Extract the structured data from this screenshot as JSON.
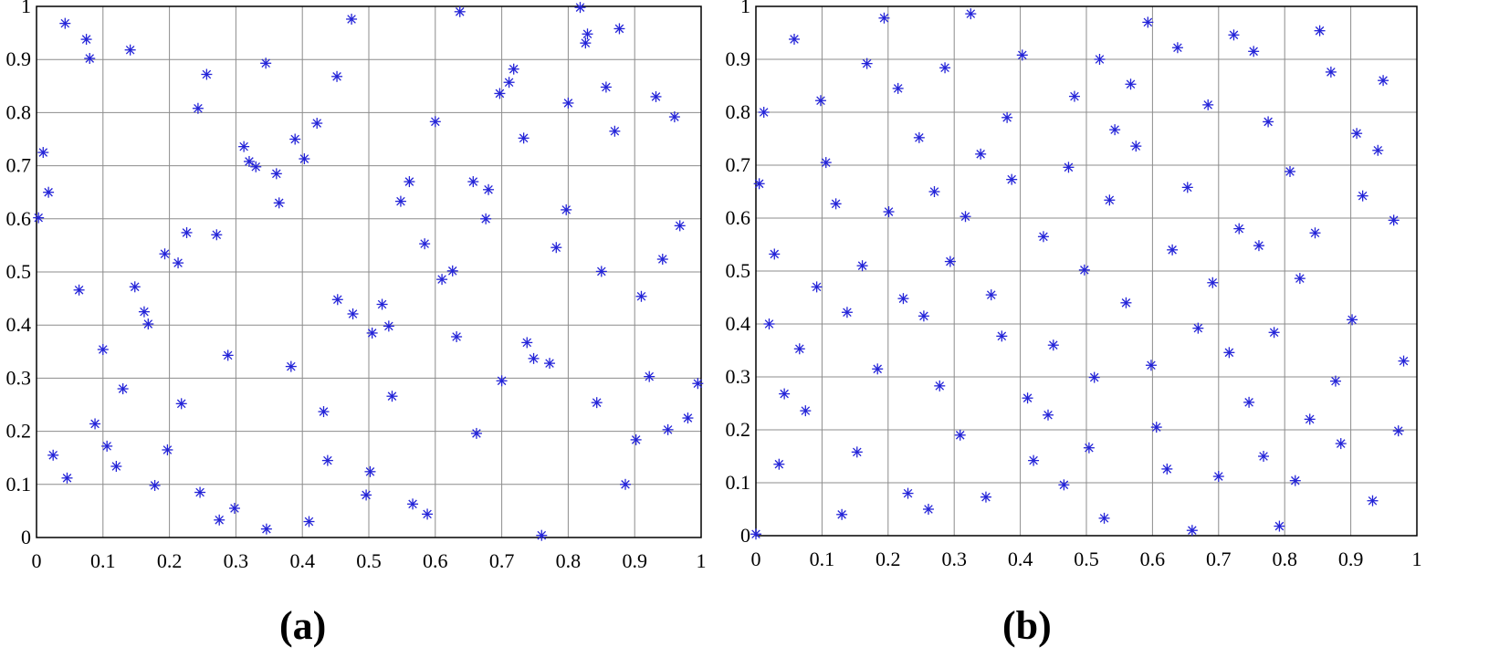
{
  "figure": {
    "panel_labels": [
      "(a)",
      "(b)"
    ]
  },
  "chart_data": [
    {
      "type": "scatter",
      "panel": "(a)",
      "title": "",
      "xlabel": "",
      "ylabel": "",
      "xlim": [
        0,
        1
      ],
      "ylim": [
        0,
        1
      ],
      "xticks": [
        "0",
        "0.1",
        "0.2",
        "0.3",
        "0.4",
        "0.5",
        "0.6",
        "0.7",
        "0.8",
        "0.9",
        "1"
      ],
      "yticks": [
        "0",
        "0.1",
        "0.2",
        "0.3",
        "0.4",
        "0.5",
        "0.6",
        "0.7",
        "0.8",
        "0.9",
        "1"
      ],
      "grid": true,
      "marker": "asterisk",
      "color": "#2424d8",
      "points": [
        [
          0.003,
          0.602
        ],
        [
          0.01,
          0.725
        ],
        [
          0.018,
          0.65
        ],
        [
          0.043,
          0.968
        ],
        [
          0.025,
          0.155
        ],
        [
          0.046,
          0.112
        ],
        [
          0.064,
          0.466
        ],
        [
          0.075,
          0.938
        ],
        [
          0.08,
          0.902
        ],
        [
          0.088,
          0.214
        ],
        [
          0.1,
          0.354
        ],
        [
          0.106,
          0.172
        ],
        [
          0.12,
          0.134
        ],
        [
          0.13,
          0.28
        ],
        [
          0.141,
          0.918
        ],
        [
          0.148,
          0.472
        ],
        [
          0.162,
          0.425
        ],
        [
          0.168,
          0.402
        ],
        [
          0.178,
          0.098
        ],
        [
          0.193,
          0.534
        ],
        [
          0.197,
          0.165
        ],
        [
          0.213,
          0.517
        ],
        [
          0.218,
          0.252
        ],
        [
          0.226,
          0.574
        ],
        [
          0.243,
          0.808
        ],
        [
          0.246,
          0.085
        ],
        [
          0.256,
          0.872
        ],
        [
          0.271,
          0.57
        ],
        [
          0.275,
          0.033
        ],
        [
          0.288,
          0.343
        ],
        [
          0.298,
          0.055
        ],
        [
          0.312,
          0.736
        ],
        [
          0.32,
          0.708
        ],
        [
          0.33,
          0.698
        ],
        [
          0.345,
          0.893
        ],
        [
          0.346,
          0.016
        ],
        [
          0.361,
          0.685
        ],
        [
          0.365,
          0.63
        ],
        [
          0.383,
          0.322
        ],
        [
          0.389,
          0.75
        ],
        [
          0.403,
          0.713
        ],
        [
          0.41,
          0.03
        ],
        [
          0.422,
          0.78
        ],
        [
          0.432,
          0.237
        ],
        [
          0.438,
          0.145
        ],
        [
          0.452,
          0.868
        ],
        [
          0.453,
          0.448
        ],
        [
          0.474,
          0.976
        ],
        [
          0.476,
          0.421
        ],
        [
          0.496,
          0.08
        ],
        [
          0.502,
          0.124
        ],
        [
          0.505,
          0.385
        ],
        [
          0.52,
          0.439
        ],
        [
          0.53,
          0.398
        ],
        [
          0.535,
          0.266
        ],
        [
          0.548,
          0.633
        ],
        [
          0.561,
          0.67
        ],
        [
          0.566,
          0.063
        ],
        [
          0.584,
          0.553
        ],
        [
          0.588,
          0.044
        ],
        [
          0.6,
          0.783
        ],
        [
          0.61,
          0.486
        ],
        [
          0.626,
          0.502
        ],
        [
          0.632,
          0.378
        ],
        [
          0.637,
          0.99
        ],
        [
          0.657,
          0.67
        ],
        [
          0.662,
          0.196
        ],
        [
          0.676,
          0.6
        ],
        [
          0.68,
          0.655
        ],
        [
          0.697,
          0.836
        ],
        [
          0.7,
          0.295
        ],
        [
          0.711,
          0.857
        ],
        [
          0.718,
          0.882
        ],
        [
          0.733,
          0.752
        ],
        [
          0.738,
          0.367
        ],
        [
          0.748,
          0.337
        ],
        [
          0.76,
          0.004
        ],
        [
          0.772,
          0.328
        ],
        [
          0.782,
          0.546
        ],
        [
          0.797,
          0.617
        ],
        [
          0.8,
          0.818
        ],
        [
          0.818,
          0.998
        ],
        [
          0.826,
          0.931
        ],
        [
          0.829,
          0.948
        ],
        [
          0.843,
          0.254
        ],
        [
          0.85,
          0.501
        ],
        [
          0.857,
          0.848
        ],
        [
          0.87,
          0.765
        ],
        [
          0.877,
          0.958
        ],
        [
          0.886,
          0.1
        ],
        [
          0.902,
          0.184
        ],
        [
          0.91,
          0.454
        ],
        [
          0.922,
          0.303
        ],
        [
          0.932,
          0.83
        ],
        [
          0.942,
          0.524
        ],
        [
          0.95,
          0.203
        ],
        [
          0.96,
          0.792
        ],
        [
          0.968,
          0.587
        ],
        [
          0.98,
          0.225
        ],
        [
          0.995,
          0.29
        ]
      ]
    },
    {
      "type": "scatter",
      "panel": "(b)",
      "title": "",
      "xlabel": "",
      "ylabel": "",
      "xlim": [
        0,
        1
      ],
      "ylim": [
        0,
        1
      ],
      "xticks": [
        "0",
        "0.1",
        "0.2",
        "0.3",
        "0.4",
        "0.5",
        "0.6",
        "0.7",
        "0.8",
        "0.9",
        "1"
      ],
      "yticks": [
        "0",
        "0.1",
        "0.2",
        "0.3",
        "0.4",
        "0.5",
        "0.6",
        "0.7",
        "0.8",
        "0.9",
        "1"
      ],
      "grid": true,
      "marker": "asterisk",
      "color": "#2424d8",
      "points": [
        [
          0.0,
          0.003
        ],
        [
          0.005,
          0.665
        ],
        [
          0.012,
          0.8
        ],
        [
          0.02,
          0.4
        ],
        [
          0.028,
          0.532
        ],
        [
          0.035,
          0.135
        ],
        [
          0.043,
          0.268
        ],
        [
          0.058,
          0.938
        ],
        [
          0.066,
          0.353
        ],
        [
          0.075,
          0.236
        ],
        [
          0.092,
          0.47
        ],
        [
          0.098,
          0.822
        ],
        [
          0.106,
          0.705
        ],
        [
          0.121,
          0.627
        ],
        [
          0.13,
          0.04
        ],
        [
          0.138,
          0.422
        ],
        [
          0.153,
          0.158
        ],
        [
          0.161,
          0.51
        ],
        [
          0.168,
          0.892
        ],
        [
          0.184,
          0.315
        ],
        [
          0.194,
          0.978
        ],
        [
          0.201,
          0.612
        ],
        [
          0.215,
          0.845
        ],
        [
          0.223,
          0.448
        ],
        [
          0.23,
          0.08
        ],
        [
          0.247,
          0.752
        ],
        [
          0.254,
          0.415
        ],
        [
          0.261,
          0.05
        ],
        [
          0.27,
          0.65
        ],
        [
          0.278,
          0.283
        ],
        [
          0.286,
          0.884
        ],
        [
          0.294,
          0.518
        ],
        [
          0.309,
          0.19
        ],
        [
          0.317,
          0.603
        ],
        [
          0.325,
          0.986
        ],
        [
          0.34,
          0.721
        ],
        [
          0.348,
          0.073
        ],
        [
          0.356,
          0.455
        ],
        [
          0.372,
          0.377
        ],
        [
          0.38,
          0.79
        ],
        [
          0.387,
          0.673
        ],
        [
          0.403,
          0.908
        ],
        [
          0.411,
          0.26
        ],
        [
          0.42,
          0.142
        ],
        [
          0.435,
          0.565
        ],
        [
          0.442,
          0.228
        ],
        [
          0.45,
          0.36
        ],
        [
          0.466,
          0.096
        ],
        [
          0.473,
          0.696
        ],
        [
          0.482,
          0.83
        ],
        [
          0.497,
          0.502
        ],
        [
          0.504,
          0.166
        ],
        [
          0.512,
          0.299
        ],
        [
          0.52,
          0.9
        ],
        [
          0.527,
          0.033
        ],
        [
          0.535,
          0.634
        ],
        [
          0.543,
          0.767
        ],
        [
          0.56,
          0.44
        ],
        [
          0.567,
          0.853
        ],
        [
          0.575,
          0.736
        ],
        [
          0.593,
          0.97
        ],
        [
          0.598,
          0.322
        ],
        [
          0.606,
          0.205
        ],
        [
          0.622,
          0.126
        ],
        [
          0.63,
          0.54
        ],
        [
          0.638,
          0.922
        ],
        [
          0.653,
          0.658
        ],
        [
          0.66,
          0.01
        ],
        [
          0.669,
          0.392
        ],
        [
          0.684,
          0.814
        ],
        [
          0.691,
          0.478
        ],
        [
          0.7,
          0.112
        ],
        [
          0.716,
          0.346
        ],
        [
          0.723,
          0.946
        ],
        [
          0.731,
          0.58
        ],
        [
          0.746,
          0.252
        ],
        [
          0.753,
          0.915
        ],
        [
          0.761,
          0.548
        ],
        [
          0.768,
          0.15
        ],
        [
          0.775,
          0.782
        ],
        [
          0.784,
          0.384
        ],
        [
          0.792,
          0.018
        ],
        [
          0.808,
          0.688
        ],
        [
          0.816,
          0.104
        ],
        [
          0.823,
          0.486
        ],
        [
          0.838,
          0.22
        ],
        [
          0.846,
          0.572
        ],
        [
          0.853,
          0.954
        ],
        [
          0.87,
          0.876
        ],
        [
          0.877,
          0.292
        ],
        [
          0.885,
          0.174
        ],
        [
          0.902,
          0.408
        ],
        [
          0.909,
          0.76
        ],
        [
          0.918,
          0.642
        ],
        [
          0.933,
          0.066
        ],
        [
          0.941,
          0.728
        ],
        [
          0.949,
          0.86
        ],
        [
          0.965,
          0.596
        ],
        [
          0.972,
          0.198
        ],
        [
          0.98,
          0.33
        ]
      ]
    }
  ]
}
